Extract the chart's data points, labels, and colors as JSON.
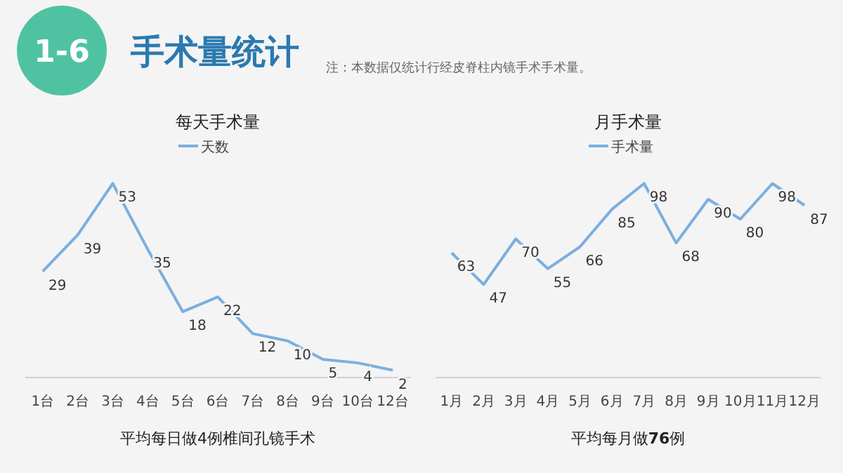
{
  "chart_data": [
    {
      "type": "other",
      "title": "手术量统计",
      "annotations": [
        "1-6",
        "注：本数据仅统计行经皮脊柱内镜手术手术量。"
      ]
    },
    {
      "type": "line",
      "title": "每天手术量",
      "categories": [
        "1台",
        "2台",
        "3台",
        "4台",
        "5台",
        "6台",
        "7台",
        "8台",
        "9台",
        "10台",
        "12台"
      ],
      "series": [
        {
          "name": "天数",
          "color": "#7bafde",
          "values": [
            29,
            39,
            53,
            35,
            18,
            22,
            12,
            10,
            5,
            4,
            2
          ]
        }
      ],
      "tick_labels": "x",
      "data_labels": true,
      "legend": "top",
      "marker": "none",
      "annotations": [
        "平均每日做4例椎间孔镜手术"
      ]
    },
    {
      "type": "line",
      "title": "月手术量",
      "categories": [
        "1月",
        "2月",
        "3月",
        "4月",
        "5月",
        "6月",
        "7月",
        "8月",
        "9月",
        "10月",
        "11月",
        "12月"
      ],
      "series": [
        {
          "name": "手术量",
          "color": "#7bafde",
          "values": [
            63,
            47,
            70,
            55,
            66,
            85,
            98,
            68,
            90,
            80,
            98,
            87
          ]
        }
      ],
      "tick_labels": "x",
      "data_labels": true,
      "legend": "top",
      "marker": "none",
      "annotations": [
        "平均每月做**76**例"
      ]
    }
  ]
}
